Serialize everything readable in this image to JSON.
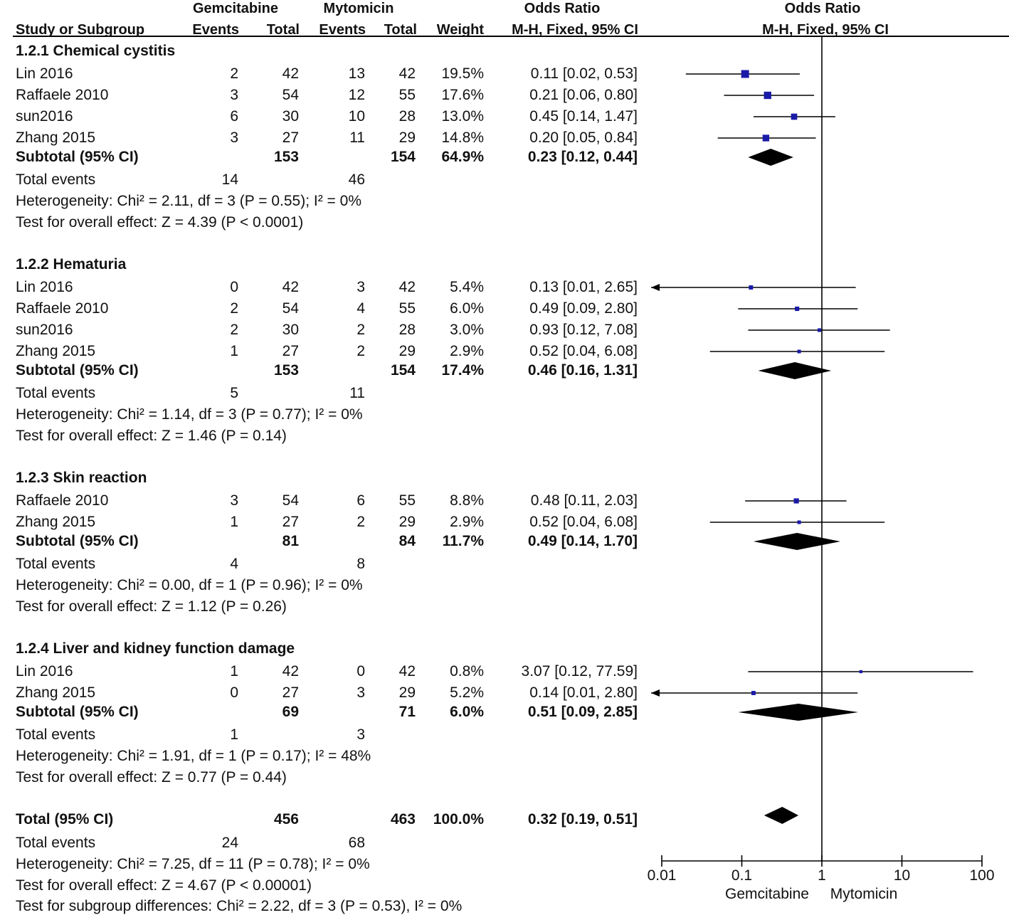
{
  "header": {
    "group1": "Gemcitabine",
    "group2": "Mytomicin",
    "or_title": "Odds Ratio",
    "study_col": "Study or Subgroup",
    "events": "Events",
    "total": "Total",
    "weight": "Weight",
    "method": "M-H, Fixed, 95% CI",
    "plot_title": "Odds Ratio",
    "plot_method": "M-H, Fixed, 95% CI"
  },
  "subgroups": [
    {
      "title": "1.2.1 Chemical cystitis",
      "studies": [
        {
          "name": "Lin 2016",
          "e1": "2",
          "n1": "42",
          "e2": "13",
          "n2": "42",
          "weight": "19.5%",
          "or_text": "0.11 [0.02, 0.53]",
          "or": 0.11,
          "lo": 0.02,
          "hi": 0.53
        },
        {
          "name": "Raffaele 2010",
          "e1": "3",
          "n1": "54",
          "e2": "12",
          "n2": "55",
          "weight": "17.6%",
          "or_text": "0.21 [0.06, 0.80]",
          "or": 0.21,
          "lo": 0.06,
          "hi": 0.8
        },
        {
          "name": "sun2016",
          "e1": "6",
          "n1": "30",
          "e2": "10",
          "n2": "28",
          "weight": "13.0%",
          "or_text": "0.45 [0.14, 1.47]",
          "or": 0.45,
          "lo": 0.14,
          "hi": 1.47
        },
        {
          "name": "Zhang 2015",
          "e1": "3",
          "n1": "27",
          "e2": "11",
          "n2": "29",
          "weight": "14.8%",
          "or_text": "0.20 [0.05, 0.84]",
          "or": 0.2,
          "lo": 0.05,
          "hi": 0.84
        }
      ],
      "subtotal": {
        "label": "Subtotal (95% CI)",
        "n1": "153",
        "n2": "154",
        "weight": "64.9%",
        "or_text": "0.23 [0.12, 0.44]",
        "or": 0.23,
        "lo": 0.12,
        "hi": 0.44
      },
      "total_events": {
        "label": "Total events",
        "e1": "14",
        "e2": "46"
      },
      "heterogeneity": "Heterogeneity: Chi² = 2.11, df = 3 (P = 0.55); I² = 0%",
      "overall": "Test for overall effect: Z = 4.39 (P < 0.0001)"
    },
    {
      "title": "1.2.2 Hematuria",
      "studies": [
        {
          "name": "Lin 2016",
          "e1": "0",
          "n1": "42",
          "e2": "3",
          "n2": "42",
          "weight": "5.4%",
          "or_text": "0.13 [0.01, 2.65]",
          "or": 0.13,
          "lo": 0.01,
          "hi": 2.65
        },
        {
          "name": "Raffaele 2010",
          "e1": "2",
          "n1": "54",
          "e2": "4",
          "n2": "55",
          "weight": "6.0%",
          "or_text": "0.49 [0.09, 2.80]",
          "or": 0.49,
          "lo": 0.09,
          "hi": 2.8
        },
        {
          "name": "sun2016",
          "e1": "2",
          "n1": "30",
          "e2": "2",
          "n2": "28",
          "weight": "3.0%",
          "or_text": "0.93 [0.12, 7.08]",
          "or": 0.93,
          "lo": 0.12,
          "hi": 7.08
        },
        {
          "name": "Zhang 2015",
          "e1": "1",
          "n1": "27",
          "e2": "2",
          "n2": "29",
          "weight": "2.9%",
          "or_text": "0.52 [0.04, 6.08]",
          "or": 0.52,
          "lo": 0.04,
          "hi": 6.08
        }
      ],
      "subtotal": {
        "label": "Subtotal (95% CI)",
        "n1": "153",
        "n2": "154",
        "weight": "17.4%",
        "or_text": "0.46 [0.16, 1.31]",
        "or": 0.46,
        "lo": 0.16,
        "hi": 1.31
      },
      "total_events": {
        "label": "Total events",
        "e1": "5",
        "e2": "11"
      },
      "heterogeneity": "Heterogeneity: Chi² = 1.14, df = 3 (P = 0.77); I² = 0%",
      "overall": "Test for overall effect: Z = 1.46 (P = 0.14)"
    },
    {
      "title": "1.2.3 Skin reaction",
      "studies": [
        {
          "name": "Raffaele 2010",
          "e1": "3",
          "n1": "54",
          "e2": "6",
          "n2": "55",
          "weight": "8.8%",
          "or_text": "0.48 [0.11, 2.03]",
          "or": 0.48,
          "lo": 0.11,
          "hi": 2.03
        },
        {
          "name": "Zhang 2015",
          "e1": "1",
          "n1": "27",
          "e2": "2",
          "n2": "29",
          "weight": "2.9%",
          "or_text": "0.52 [0.04, 6.08]",
          "or": 0.52,
          "lo": 0.04,
          "hi": 6.08
        }
      ],
      "subtotal": {
        "label": "Subtotal (95% CI)",
        "n1": "81",
        "n2": "84",
        "weight": "11.7%",
        "or_text": "0.49 [0.14, 1.70]",
        "or": 0.49,
        "lo": 0.14,
        "hi": 1.7
      },
      "total_events": {
        "label": "Total events",
        "e1": "4",
        "e2": "8"
      },
      "heterogeneity": "Heterogeneity: Chi² = 0.00, df = 1 (P = 0.96); I² = 0%",
      "overall": "Test for overall effect: Z = 1.12 (P = 0.26)"
    },
    {
      "title": "1.2.4 Liver and kidney function damage",
      "studies": [
        {
          "name": "Lin 2016",
          "e1": "1",
          "n1": "42",
          "e2": "0",
          "n2": "42",
          "weight": "0.8%",
          "or_text": "3.07 [0.12, 77.59]",
          "or": 3.07,
          "lo": 0.12,
          "hi": 77.59
        },
        {
          "name": "Zhang 2015",
          "e1": "0",
          "n1": "27",
          "e2": "3",
          "n2": "29",
          "weight": "5.2%",
          "or_text": "0.14 [0.01, 2.80]",
          "or": 0.14,
          "lo": 0.01,
          "hi": 2.8
        }
      ],
      "subtotal": {
        "label": "Subtotal (95% CI)",
        "n1": "69",
        "n2": "71",
        "weight": "6.0%",
        "or_text": "0.51 [0.09, 2.85]",
        "or": 0.51,
        "lo": 0.09,
        "hi": 2.85
      },
      "total_events": {
        "label": "Total events",
        "e1": "1",
        "e2": "3"
      },
      "heterogeneity": "Heterogeneity: Chi² = 1.91, df = 1 (P = 0.17); I² = 48%",
      "overall": "Test for overall effect: Z = 0.77 (P = 0.44)"
    }
  ],
  "total": {
    "label": "Total (95% CI)",
    "n1": "456",
    "n2": "463",
    "weight": "100.0%",
    "or_text": "0.32 [0.19, 0.51]",
    "or": 0.32,
    "lo": 0.19,
    "hi": 0.51,
    "events_label": "Total events",
    "e1": "24",
    "e2": "68",
    "heterogeneity": "Heterogeneity: Chi² = 7.25, df = 11 (P = 0.78); I² = 0%",
    "overall": "Test for overall effect: Z = 4.67 (P < 0.00001)",
    "subgroup_diff": "Test for subgroup differences: Chi² = 2.22, df = 3 (P = 0.53), I² = 0%"
  },
  "chart_data": {
    "type": "forest",
    "title": "Odds Ratio",
    "subtitle": "M-H, Fixed, 95% CI",
    "x_scale": "log",
    "xlim": [
      0.01,
      100
    ],
    "x_ticks": [
      0.01,
      0.1,
      1,
      10,
      100
    ],
    "x_tick_labels": [
      "0.01",
      "0.1",
      "1",
      "10",
      "100"
    ],
    "null_value": 1,
    "favours_left": "Gemcitabine",
    "favours_right": "Mytomicin",
    "marker_color": "#1a1aa8",
    "diamond_color": "#000000"
  }
}
